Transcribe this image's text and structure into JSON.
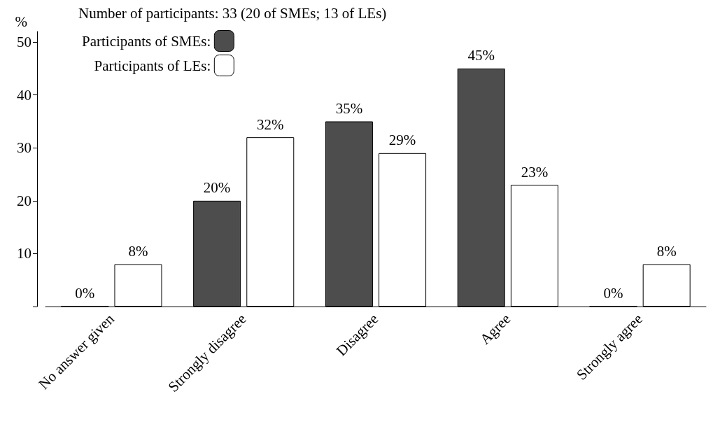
{
  "chart_data": {
    "type": "bar",
    "ylabel": "%",
    "legend_title": "Number of participants: 33 (20 of SMEs; 13 of LEs)",
    "categories": [
      "No answer given",
      "Strongly disagree",
      "Disagree",
      "Agree",
      "Strongly agree"
    ],
    "series": [
      {
        "name": "Participants of SMEs:",
        "color": "#4d4d4d",
        "values": [
          0,
          20,
          35,
          45,
          0
        ],
        "value_labels": [
          "0%",
          "20%",
          "35%",
          "45%",
          "0%"
        ]
      },
      {
        "name": "Participants of LEs:",
        "color": "#ffffff",
        "values": [
          8,
          32,
          29,
          23,
          8
        ],
        "value_labels": [
          "8%",
          "32%",
          "29%",
          "23%",
          "8%"
        ]
      }
    ],
    "ylim": [
      0,
      52
    ],
    "yticks": [
      {
        "value": 0,
        "label": null
      },
      10,
      20,
      30,
      40,
      50
    ],
    "grid": false,
    "legend": "top left"
  }
}
